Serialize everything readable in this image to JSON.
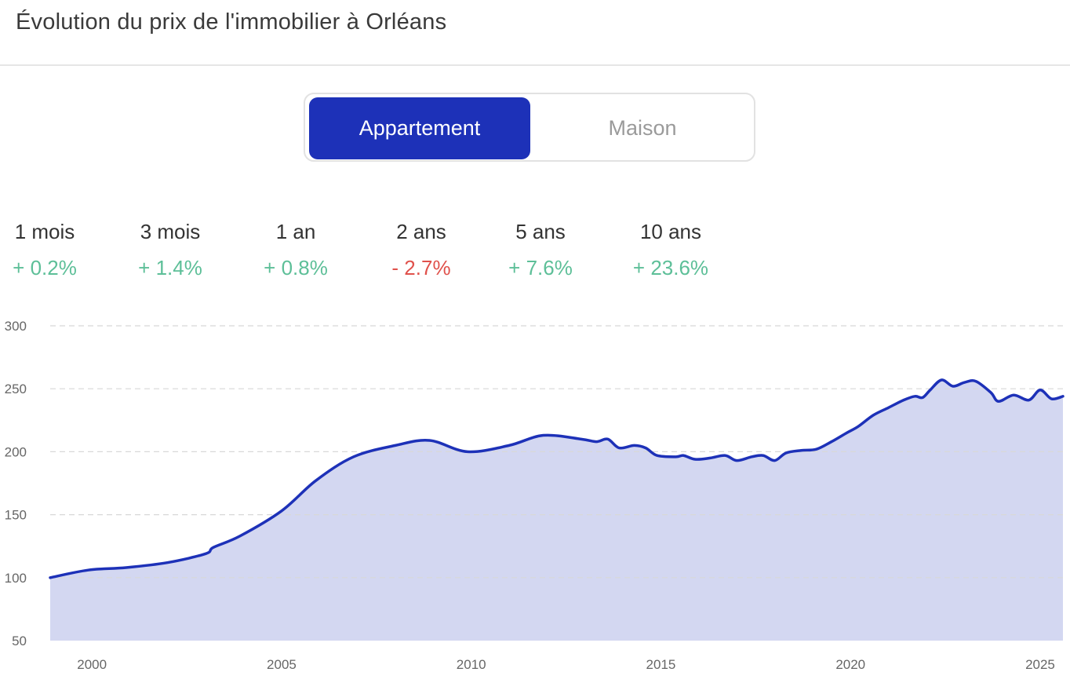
{
  "header": {
    "title": "Évolution du prix de l'immobilier à Orléans"
  },
  "toggle": {
    "options": [
      "Appartement",
      "Maison"
    ],
    "selected": "Appartement"
  },
  "stats": [
    {
      "label": "1 mois",
      "value": "+ 0.2%",
      "trend": "up"
    },
    {
      "label": "3 mois",
      "value": "+ 1.4%",
      "trend": "up"
    },
    {
      "label": "1 an",
      "value": "+ 0.8%",
      "trend": "up"
    },
    {
      "label": "2 ans",
      "value": "- 2.7%",
      "trend": "down"
    },
    {
      "label": "5 ans",
      "value": "+ 7.6%",
      "trend": "up"
    },
    {
      "label": "10 ans",
      "value": "+ 23.6%",
      "trend": "up"
    }
  ],
  "colors": {
    "accent": "#1d31b8",
    "fill": "#d3d7f1",
    "up": "#5dbf98",
    "down": "#e0514b",
    "grid": "#d8d8d8"
  },
  "chart_data": {
    "type": "area",
    "title": "",
    "xlabel": "",
    "ylabel": "",
    "xlim": [
      1998.9,
      2025.6
    ],
    "ylim": [
      50,
      300
    ],
    "grid": true,
    "x_ticks": [
      2000,
      2005,
      2010,
      2015,
      2020,
      2025
    ],
    "y_ticks": [
      50,
      100,
      150,
      200,
      250,
      300
    ],
    "series": [
      {
        "x": [
          1998.9,
          1999.9,
          2000.9,
          2002.0,
          2003.0,
          2003.2,
          2003.9,
          2005.0,
          2005.9,
          2006.9,
          2008.0,
          2008.9,
          2009.9,
          2011.0,
          2011.9,
          2012.9,
          2013.3,
          2013.6,
          2013.9,
          2014.3,
          2014.6,
          2014.9,
          2015.4,
          2015.6,
          2015.9,
          2016.3,
          2016.7,
          2017.0,
          2017.4,
          2017.7,
          2018.0,
          2018.3,
          2018.7,
          2019.1,
          2019.5,
          2019.9,
          2020.2,
          2020.6,
          2021.0,
          2021.4,
          2021.7,
          2021.9,
          2022.1,
          2022.4,
          2022.7,
          2023.0,
          2023.3,
          2023.7,
          2023.9,
          2024.3,
          2024.7,
          2025.0,
          2025.3,
          2025.6
        ],
        "y": [
          100,
          106,
          108,
          112,
          119,
          124,
          133,
          153,
          177,
          196,
          205,
          209,
          200,
          205,
          213,
          210,
          208,
          210,
          203,
          205,
          203,
          197,
          196,
          197,
          194,
          195,
          197,
          193,
          196,
          197,
          193,
          199,
          201,
          202,
          208,
          215,
          220,
          229,
          235,
          241,
          244,
          243,
          249,
          257,
          252,
          255,
          256,
          247,
          240,
          245,
          241,
          249,
          242,
          244
        ]
      }
    ]
  }
}
